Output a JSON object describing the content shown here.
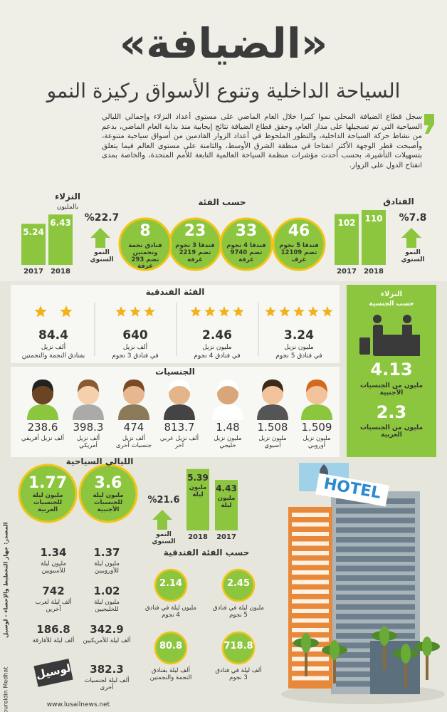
{
  "header": {
    "title": "«الضيافة»",
    "subtitle": "السياحة الداخلية وتنوع الأسواق ركيزة النمو"
  },
  "intro": "سجل قطاع الضيافة المحلي نموا كبيرا خلال العام الماضي على مستوى أعداد النزلاء وإجمالي الليالي السياحية التي تم تسجيلها على مدار العام، وحقق قطاع الضيافة نتائج إيجابية منذ بداية العام الماضي، بدعم من نشاط حركة السياحة الداخلية، والتطور الملحوظ في أعداد الزوار القادمين من أسواق سياحية متنوعة، وأصبحت قطر الوجهة الأكثر انفتاحا في منطقة الشرق الأوسط، والثامنة على مستوى العالم فيما يتعلق بتسهيلات التأشيرة، بحسب أحدث مؤشرات منظمة السياحة العالمية التابعة للأمم المتحدة، والخاصة بمدى انفتاح الدول على الزوار.",
  "hotels": {
    "title": "الفنادق",
    "growth": "%7.8",
    "growth_label": "النمو السنوي",
    "bars": [
      {
        "year": "2017",
        "value": 102
      },
      {
        "year": "2018",
        "value": 110
      }
    ]
  },
  "category": {
    "title": "حسب الفئة",
    "circles": [
      {
        "value": 46,
        "label": "فندقا 5 نجوم تضم 12109 غرف"
      },
      {
        "value": 33,
        "label": "فندقا 4 نجوم تضم 9740 غرفة"
      },
      {
        "value": 23,
        "label": "فندقا 3 نجوم تضم 2219 غرفة"
      },
      {
        "value": 8,
        "label": "فنادق نجمة ونجمتين تضم 293 غرفة"
      }
    ]
  },
  "guests": {
    "title": "النزلاء",
    "unit": "بالمليون",
    "growth": "%22.7",
    "growth_label": "النمو السنوي",
    "bars": [
      {
        "year": "2017",
        "value": 5.24
      },
      {
        "year": "2018",
        "value": 6.43
      }
    ]
  },
  "hotel_class": {
    "title": "الفئة الفندقية",
    "items": [
      {
        "stars": 5,
        "value": 3.24,
        "unit": "مليون نزيل",
        "label": "في فنادق 5 نجوم"
      },
      {
        "stars": 4,
        "value": 2.46,
        "unit": "مليون نزيل",
        "label": "في فنادق 4 نجوم"
      },
      {
        "stars": 3,
        "value": 640,
        "unit": "ألف نزيل",
        "label": "في فنادق 3 نجوم"
      },
      {
        "stars": 2,
        "value": 84.4,
        "unit": "ألف نزيل",
        "label": "بفنادق النجمة والنجمتين"
      }
    ]
  },
  "nationality_panel": {
    "title": "النزلاء",
    "subtitle": "حسب الجنسية",
    "foreign": {
      "value": 4.13,
      "label": "مليون من الجنسيات الأجنبية"
    },
    "arab": {
      "value": 2.3,
      "label": "مليون من الجنسيات العربية"
    }
  },
  "nationalities": {
    "title": "الجنسيات",
    "items": [
      {
        "value": 1.509,
        "label": "مليون نزيل أوروبي"
      },
      {
        "value": 1.508,
        "label": "مليون نزيل آسيوي"
      },
      {
        "value": 1.48,
        "label": "مليون نزيل خليجي"
      },
      {
        "value": 813.7,
        "label": "ألف نزيل عربي آخر"
      },
      {
        "value": 474,
        "label": "ألف نزيل جنسيات أخرى"
      },
      {
        "value": 398.3,
        "label": "ألف نزيل أمريكي"
      },
      {
        "value": 238.6,
        "label": "ألف نزيل أفريقي"
      }
    ]
  },
  "nights": {
    "title": "الليالي السياحية",
    "growth": "%21.6",
    "growth_label": "النمو السنوي",
    "bars": [
      {
        "year": "2017",
        "value": 4.43,
        "unit": "مليون ليلة"
      },
      {
        "year": "2018",
        "value": 5.39,
        "unit": "مليون ليلة"
      }
    ],
    "foreign": {
      "value": 3.6,
      "label": "مليون ليلة للجنسيات الأجنبية"
    },
    "arab": {
      "value": 1.77,
      "label": "مليون ليلة للجنسيات العربية"
    },
    "by_nationality": [
      {
        "value": 1.37,
        "label": "مليون ليلة للأوروبيين"
      },
      {
        "value": 1.34,
        "label": "مليون ليلة للآسيويين"
      },
      {
        "value": 1.02,
        "label": "مليون ليلة للخليجيين"
      },
      {
        "value": 742,
        "label": "ألف ليلة لعرب آخرين"
      },
      {
        "value": 342.9,
        "label": "ألف ليلة للأمريكيين"
      },
      {
        "value": 186.8,
        "label": "ألف ليلة للأفارقة"
      },
      {
        "value": 382.3,
        "label": "ألف ليلة لجنسيات أخرى"
      }
    ]
  },
  "nights_class": {
    "title": "حسب الفئة الفندقية",
    "items": [
      {
        "value": 2.45,
        "label": "مليون ليلة في فنادق 5 نجوم"
      },
      {
        "value": 2.14,
        "label": "مليون ليلة في فنادق 4 نجوم"
      },
      {
        "value": 718.8,
        "label": "ألف ليلة في فنادق 3 نجوم"
      },
      {
        "value": 80.8,
        "label": "ألف ليلة بفنادق النجمة والنجمتين"
      }
    ]
  },
  "illustration": {
    "sign": "HOTEL"
  },
  "footer": {
    "logo": "لوسيل",
    "website": "www.lusailnews.net",
    "source": "المصدر: جهاز التخطيط والإحصاء - لوسيل",
    "credit": "By: Noureldin Medhat"
  }
}
